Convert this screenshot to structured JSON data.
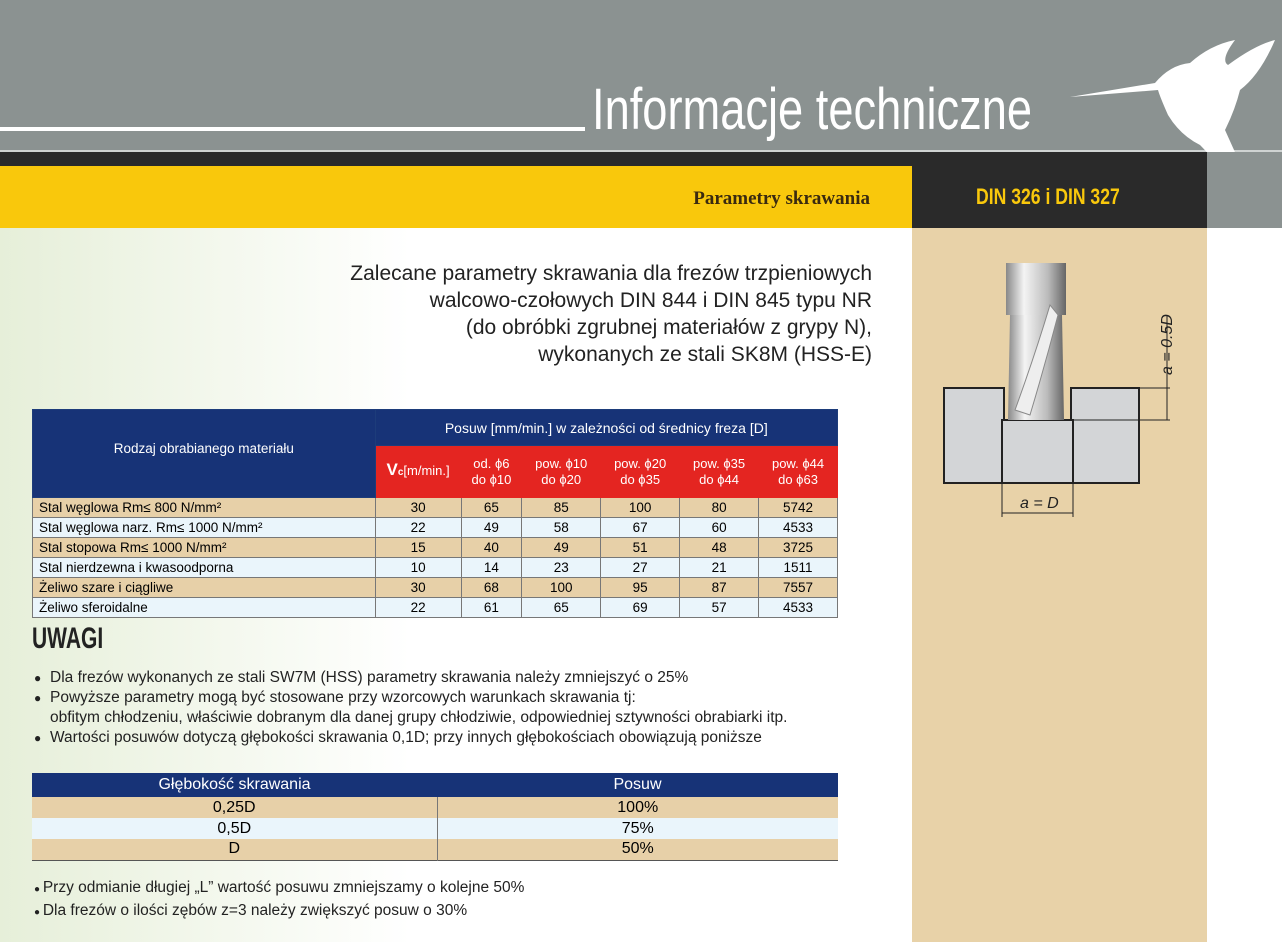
{
  "header": {
    "title": "Informacje techniczne",
    "section": "Parametry skrawania",
    "standard": "DIN 326 i DIN 327"
  },
  "intro": [
    "Zalecane parametry skrawania dla frezów trzpieniowych",
    "walcowo-czołowych DIN 844 i DIN 845 typu NR",
    "(do obróbki zgrubnej materiałów z grypy N),",
    "wykonanych ze stali SK8M (HSS-E)"
  ],
  "table": {
    "material_header": "Rodzaj obrabianego materiału",
    "feed_header": "Posuw [mm/min.] w zależności od średnicy freza [D]",
    "vc_symbol": "V",
    "vc_sub": "c",
    "vc_unit": "[m/min.]",
    "columns": [
      [
        "od. ϕ6",
        "do ϕ10"
      ],
      [
        "pow. ϕ10",
        "do ϕ20"
      ],
      [
        "pow. ϕ20",
        "do ϕ35"
      ],
      [
        "pow. ϕ35",
        "do ϕ44"
      ],
      [
        "pow. ϕ44",
        "do ϕ63"
      ]
    ],
    "rows": [
      {
        "material": "Stal węglowa Rm≤  800 N/mm²",
        "values": [
          "30",
          "65",
          "85",
          "100",
          "80",
          "5742"
        ]
      },
      {
        "material": "Stal węglowa narz. Rm≤  1000 N/mm²",
        "values": [
          "22",
          "49",
          "58",
          "67",
          "60",
          "4533"
        ]
      },
      {
        "material": "Stal stopowa Rm≤  1000 N/mm²",
        "values": [
          "15",
          "40",
          "49",
          "51",
          "48",
          "3725"
        ]
      },
      {
        "material": "Stal nierdzewna i kwasoodporna",
        "values": [
          "10",
          "14",
          "23",
          "27",
          "21",
          "1511"
        ]
      },
      {
        "material": "Żeliwo szare i ciągliwe",
        "values": [
          "30",
          "68",
          "100",
          "95",
          "87",
          "7557"
        ]
      },
      {
        "material": "Żeliwo sferoidalne",
        "values": [
          "22",
          "61",
          "65",
          "69",
          "57",
          "4533"
        ]
      }
    ]
  },
  "notes": {
    "title": "UWAGI",
    "items": [
      "Dla frezów wykonanych ze stali SW7M (HSS) parametry skrawania należy zmniejszyć o 25%",
      "Powyższe parametry mogą być stosowane przy wzorcowych warunkach skrawania tj:",
      "Wartości posuwów dotyczą głębokości skrawania 0,1D; przy innych głębokościach obowiązują poniższe"
    ],
    "continuation": "obfitym chłodzeniu, właściwie dobranym dla danej grupy chłodziwie, odpowiedniej sztywności obrabiarki itp."
  },
  "depth_table": {
    "headers": [
      "Głębokość skrawania",
      "Posuw"
    ],
    "rows": [
      [
        "0,25D",
        "100%"
      ],
      [
        "0,5D",
        "75%"
      ],
      [
        "D",
        "50%"
      ]
    ]
  },
  "footnotes": [
    "Przy odmianie długiej „L” wartość posuwu zmniejszamy o kolejne 50%",
    "Dla frezów o ilości zębów z=3 należy zwiększyć posuw o 30%"
  ],
  "diagram": {
    "depth_label": "a = 0.5D",
    "width_label": "a = D"
  },
  "colors": {
    "gray": "#8b9291",
    "yellow": "#f9c80c",
    "navy": "#173377",
    "red": "#e42521",
    "tan": "#e7d0a8"
  }
}
